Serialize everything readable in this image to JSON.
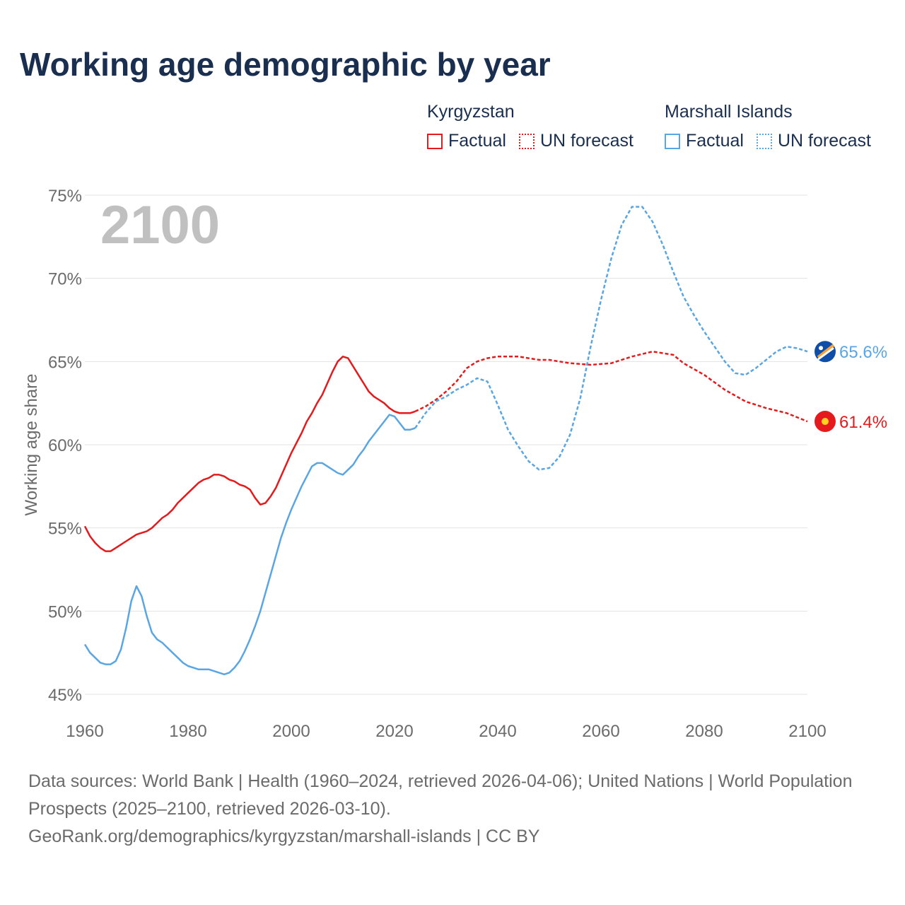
{
  "title": "Working age demographic by year",
  "legend": {
    "kyrgyzstan": {
      "name": "Kyrgyzstan",
      "factual": "Factual",
      "forecast": "UN forecast",
      "color": "#e41a1c"
    },
    "marshall": {
      "name": "Marshall Islands",
      "factual": "Factual",
      "forecast": "UN forecast",
      "color": "#5aa6e3"
    }
  },
  "chart_data": {
    "type": "line",
    "year_watermark": "2100",
    "ylabel": "Working age share",
    "xlabel": "",
    "xlim": [
      1960,
      2100
    ],
    "ylim": [
      45,
      75
    ],
    "x_ticks": [
      1960,
      1980,
      2000,
      2020,
      2040,
      2060,
      2080,
      2100
    ],
    "y_ticks": [
      45,
      50,
      55,
      60,
      65,
      70,
      75
    ],
    "y_tick_labels": [
      "45%",
      "50%",
      "55%",
      "60%",
      "65%",
      "70%",
      "75%"
    ],
    "x_tick_labels": [
      "1960",
      "1980",
      "2000",
      "2020",
      "2040",
      "2060",
      "2080",
      "2100"
    ],
    "series": [
      {
        "name": "Kyrgyzstan",
        "color": "#e41a1c",
        "end_label": "61.4%",
        "factual": {
          "x": [
            1960,
            1961,
            1962,
            1963,
            1964,
            1965,
            1966,
            1967,
            1968,
            1969,
            1970,
            1971,
            1972,
            1973,
            1974,
            1975,
            1976,
            1977,
            1978,
            1979,
            1980,
            1981,
            1982,
            1983,
            1984,
            1985,
            1986,
            1987,
            1988,
            1989,
            1990,
            1991,
            1992,
            1993,
            1994,
            1995,
            1996,
            1997,
            1998,
            1999,
            2000,
            2001,
            2002,
            2003,
            2004,
            2005,
            2006,
            2007,
            2008,
            2009,
            2010,
            2011,
            2012,
            2013,
            2014,
            2015,
            2016,
            2017,
            2018,
            2019,
            2020,
            2021,
            2022,
            2023,
            2024
          ],
          "y": [
            55.1,
            54.5,
            54.1,
            53.8,
            53.6,
            53.6,
            53.8,
            54.0,
            54.2,
            54.4,
            54.6,
            54.7,
            54.8,
            55.0,
            55.3,
            55.6,
            55.8,
            56.1,
            56.5,
            56.8,
            57.1,
            57.4,
            57.7,
            57.9,
            58.0,
            58.2,
            58.2,
            58.1,
            57.9,
            57.8,
            57.6,
            57.5,
            57.3,
            56.8,
            56.4,
            56.5,
            56.9,
            57.4,
            58.1,
            58.8,
            59.5,
            60.1,
            60.7,
            61.4,
            61.9,
            62.5,
            63.0,
            63.7,
            64.4,
            65.0,
            65.3,
            65.2,
            64.7,
            64.2,
            63.7,
            63.2,
            62.9,
            62.7,
            62.5,
            62.2,
            62.0,
            61.9,
            61.9,
            61.9,
            62.0
          ]
        },
        "forecast": {
          "x": [
            2024,
            2026,
            2028,
            2030,
            2032,
            2034,
            2036,
            2038,
            2040,
            2044,
            2048,
            2050,
            2054,
            2058,
            2062,
            2066,
            2070,
            2074,
            2076,
            2080,
            2084,
            2088,
            2092,
            2096,
            2100
          ],
          "y": [
            62.0,
            62.3,
            62.7,
            63.2,
            63.8,
            64.6,
            65.0,
            65.2,
            65.3,
            65.3,
            65.1,
            65.1,
            64.9,
            64.8,
            64.9,
            65.3,
            65.6,
            65.4,
            64.9,
            64.2,
            63.3,
            62.6,
            62.2,
            61.9,
            61.4
          ]
        }
      },
      {
        "name": "Marshall Islands",
        "color": "#5aa6e3",
        "end_label": "65.6%",
        "factual": {
          "x": [
            1960,
            1961,
            1962,
            1963,
            1964,
            1965,
            1966,
            1967,
            1968,
            1969,
            1970,
            1971,
            1972,
            1973,
            1974,
            1975,
            1976,
            1977,
            1978,
            1979,
            1980,
            1981,
            1982,
            1983,
            1984,
            1985,
            1986,
            1987,
            1988,
            1989,
            1990,
            1991,
            1992,
            1993,
            1994,
            1995,
            1996,
            1997,
            1998,
            1999,
            2000,
            2001,
            2002,
            2003,
            2004,
            2005,
            2006,
            2007,
            2008,
            2009,
            2010,
            2011,
            2012,
            2013,
            2014,
            2015,
            2016,
            2017,
            2018,
            2019,
            2020,
            2021,
            2022,
            2023,
            2024
          ],
          "y": [
            48.0,
            47.5,
            47.2,
            46.9,
            46.8,
            46.8,
            47.0,
            47.7,
            49.0,
            50.6,
            51.5,
            50.9,
            49.7,
            48.7,
            48.3,
            48.1,
            47.8,
            47.5,
            47.2,
            46.9,
            46.7,
            46.6,
            46.5,
            46.5,
            46.5,
            46.4,
            46.3,
            46.2,
            46.3,
            46.6,
            47.0,
            47.6,
            48.3,
            49.1,
            50.0,
            51.1,
            52.2,
            53.3,
            54.4,
            55.3,
            56.1,
            56.8,
            57.5,
            58.1,
            58.7,
            58.9,
            58.9,
            58.7,
            58.5,
            58.3,
            58.2,
            58.5,
            58.8,
            59.3,
            59.7,
            60.2,
            60.6,
            61.0,
            61.4,
            61.8,
            61.7,
            61.3,
            60.9,
            60.9,
            61.0
          ]
        },
        "forecast": {
          "x": [
            2024,
            2026,
            2028,
            2030,
            2032,
            2034,
            2036,
            2038,
            2040,
            2042,
            2044,
            2046,
            2048,
            2050,
            2052,
            2054,
            2056,
            2058,
            2060,
            2062,
            2064,
            2066,
            2068,
            2070,
            2072,
            2074,
            2076,
            2078,
            2080,
            2082,
            2084,
            2086,
            2088,
            2090,
            2092,
            2094,
            2096,
            2098,
            2100
          ],
          "y": [
            61.0,
            61.9,
            62.6,
            62.9,
            63.3,
            63.6,
            64.0,
            63.8,
            62.4,
            60.9,
            59.9,
            59.0,
            58.5,
            58.6,
            59.3,
            60.6,
            62.8,
            65.9,
            68.7,
            71.2,
            73.2,
            74.3,
            74.3,
            73.4,
            72.0,
            70.4,
            68.9,
            67.8,
            66.8,
            65.9,
            65.0,
            64.3,
            64.2,
            64.6,
            65.1,
            65.6,
            65.9,
            65.8,
            65.6
          ]
        }
      }
    ]
  },
  "footer": {
    "sources": "Data sources: World Bank | Health (1960–2024, retrieved 2026-04-06); United Nations | World Population Prospects (2025–2100, retrieved 2026-03-10).",
    "attribution": "GeoRank.org/demographics/kyrgyzstan/marshall-islands | CC BY"
  }
}
